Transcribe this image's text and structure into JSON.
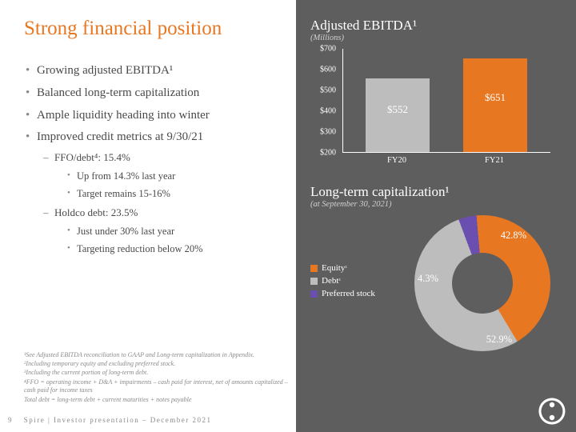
{
  "title": "Strong financial position",
  "bullets": [
    "Growing adjusted EBITDA¹",
    "Balanced long-term capitalization",
    "Ample liquidity heading into winter",
    "Improved credit metrics at 9/30/21"
  ],
  "sub1a": "FFO/debt⁴: 15.4%",
  "sub1a_items": [
    "Up from 14.3% last year",
    "Target remains 15-16%"
  ],
  "sub1b": "Holdco debt: 23.5%",
  "sub1b_items": [
    "Just under 30% last year",
    "Targeting reduction below 20%"
  ],
  "footnotes": [
    "¹See Adjusted EBITDA reconciliation to GAAP and Long-term capitalization in Appendix.",
    "²Including temporary equity and excluding preferred stock.",
    "³Including the current portion of long-term debt.",
    "⁴FFO = operating income + D&A + impairments – cash paid for interest, net of amounts capitalized – cash paid for income taxes",
    "Total debt = long-term debt + current maturities + notes payable"
  ],
  "page_num": "9",
  "footer_text": "Spire | Investor presentation – December 2021",
  "bar_chart": {
    "title": "Adjusted EBITDA¹",
    "subtitle": "(Millions)",
    "ymin": 200,
    "ymax": 700,
    "ystep": 100,
    "yticks": [
      "$700",
      "$600",
      "$500",
      "$400",
      "$300",
      "$200"
    ],
    "categories": [
      "FY20",
      "FY21"
    ],
    "values": [
      552,
      651
    ],
    "value_labels": [
      "$552",
      "$651"
    ],
    "bar_colors": [
      "#bdbdbd",
      "#e87722"
    ],
    "axis_color": "#ffffff",
    "bg": "#5e5e5e"
  },
  "donut_chart": {
    "title": "Long-term capitalization¹",
    "subtitle": "(at September 30, 2021)",
    "slices": [
      {
        "label": "Equity",
        "pct": 42.8,
        "color": "#e87722",
        "super": "²"
      },
      {
        "label": "Debt",
        "pct": 52.9,
        "color": "#bdbdbd",
        "super": "³"
      },
      {
        "label": "Preferred stock",
        "pct": 4.3,
        "color": "#6a4fb0",
        "super": ""
      }
    ],
    "slice_labels": [
      "42.8%",
      "52.9%",
      "4.3%"
    ],
    "hole_color": "#5e5e5e"
  },
  "accent_color": "#e87722"
}
